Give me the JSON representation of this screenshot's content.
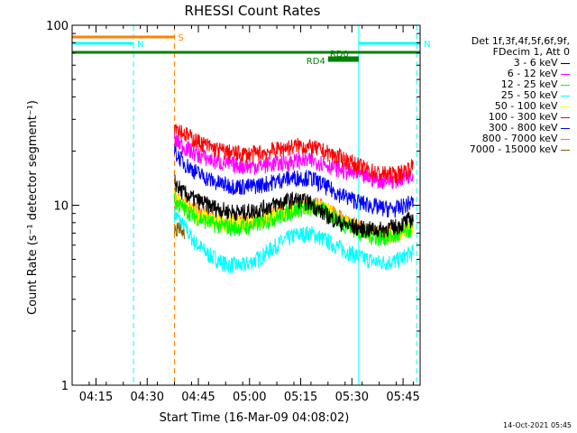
{
  "chart_data": {
    "type": "line",
    "title": "RHESSI Count Rates",
    "xlabel": "Start Time (16-Mar-09 04:08:02)",
    "ylabel": "Count Rate (s⁻¹ detector segment⁻¹)",
    "yscale": "log",
    "ylim": [
      1,
      100
    ],
    "xlim_minutes": [
      0,
      102
    ],
    "x_ticks": [
      "04:15",
      "04:30",
      "04:45",
      "05:00",
      "05:15",
      "05:30",
      "05:45"
    ],
    "y_ticks": [
      "1",
      "10",
      "100"
    ],
    "legend_header": [
      "Det 1f,3f,4f,5f,6f,9f,",
      "FDecim 1, Att 0"
    ],
    "series": [
      {
        "name": "3 - 6 keV",
        "color": "#000000",
        "points": [
          [
            30,
            13.5
          ],
          [
            32,
            12
          ],
          [
            35,
            11
          ],
          [
            40,
            10
          ],
          [
            45,
            9.3
          ],
          [
            50,
            9.1
          ],
          [
            55,
            9.5
          ],
          [
            60,
            10.2
          ],
          [
            65,
            10.8
          ],
          [
            70,
            10.3
          ],
          [
            72,
            9.5
          ],
          [
            76,
            8.5
          ],
          [
            80,
            7.8
          ],
          [
            85,
            7.4
          ],
          [
            90,
            7.3
          ],
          [
            95,
            7.6
          ],
          [
            100,
            8.5
          ]
        ]
      },
      {
        "name": "6 - 12 keV",
        "color": "#ff00ff",
        "points": [
          [
            30,
            23
          ],
          [
            33,
            21
          ],
          [
            37,
            19
          ],
          [
            42,
            17.5
          ],
          [
            47,
            16.8
          ],
          [
            52,
            16.5
          ],
          [
            57,
            16.8
          ],
          [
            62,
            17.2
          ],
          [
            67,
            17.8
          ],
          [
            72,
            17.5
          ],
          [
            76,
            16.5
          ],
          [
            80,
            15.5
          ],
          [
            85,
            14.5
          ],
          [
            90,
            13.8
          ],
          [
            95,
            13.8
          ],
          [
            100,
            15
          ]
        ]
      },
      {
        "name": "12 - 25 keV",
        "color": "#00ff00",
        "points": [
          [
            30,
            10.5
          ],
          [
            33,
            9.5
          ],
          [
            37,
            8.5
          ],
          [
            42,
            7.8
          ],
          [
            47,
            7.5
          ],
          [
            52,
            7.6
          ],
          [
            57,
            8.2
          ],
          [
            62,
            8.9
          ],
          [
            67,
            9.6
          ],
          [
            72,
            9.7
          ],
          [
            76,
            8.8
          ],
          [
            80,
            7.8
          ],
          [
            85,
            7.0
          ],
          [
            90,
            6.6
          ],
          [
            95,
            6.7
          ],
          [
            100,
            7.5
          ]
        ]
      },
      {
        "name": "25 - 50 keV",
        "color": "#00ffff",
        "points": [
          [
            30,
            9
          ],
          [
            33,
            7.5
          ],
          [
            36,
            6.2
          ],
          [
            40,
            5.3
          ],
          [
            45,
            4.7
          ],
          [
            50,
            4.6
          ],
          [
            55,
            5.1
          ],
          [
            60,
            6.0
          ],
          [
            65,
            6.8
          ],
          [
            70,
            7.0
          ],
          [
            75,
            6.3
          ],
          [
            80,
            5.6
          ],
          [
            85,
            5.1
          ],
          [
            90,
            4.8
          ],
          [
            95,
            4.9
          ],
          [
            100,
            5.5
          ]
        ]
      },
      {
        "name": "50 - 100 keV",
        "color": "#ffff00",
        "points": [
          [
            30,
            11
          ],
          [
            33,
            9.8
          ],
          [
            37,
            8.8
          ],
          [
            42,
            8.1
          ],
          [
            47,
            7.9
          ],
          [
            52,
            8.0
          ],
          [
            57,
            8.6
          ],
          [
            62,
            9.2
          ],
          [
            67,
            9.8
          ],
          [
            72,
            9.9
          ],
          [
            76,
            9.0
          ],
          [
            80,
            8.0
          ],
          [
            85,
            7.2
          ],
          [
            90,
            6.8
          ],
          [
            95,
            6.9
          ],
          [
            100,
            7.6
          ]
        ]
      },
      {
        "name": "100 - 300 keV",
        "color": "#ff0000",
        "points": [
          [
            30,
            28
          ],
          [
            33,
            25
          ],
          [
            37,
            22.5
          ],
          [
            42,
            20.5
          ],
          [
            47,
            19.5
          ],
          [
            52,
            19.2
          ],
          [
            57,
            19.8
          ],
          [
            62,
            20.8
          ],
          [
            67,
            21.5
          ],
          [
            72,
            20.5
          ],
          [
            76,
            19.2
          ],
          [
            80,
            18
          ],
          [
            85,
            16.2
          ],
          [
            90,
            15
          ],
          [
            95,
            14.8
          ],
          [
            100,
            16.5
          ]
        ]
      },
      {
        "name": "300 - 800 keV",
        "color": "#0000ff",
        "points": [
          [
            30,
            20
          ],
          [
            33,
            17
          ],
          [
            37,
            15
          ],
          [
            42,
            13.4
          ],
          [
            47,
            12.8
          ],
          [
            52,
            12.7
          ],
          [
            57,
            13.2
          ],
          [
            62,
            14
          ],
          [
            67,
            14.3
          ],
          [
            70,
            14.2
          ],
          [
            72,
            13.5
          ],
          [
            76,
            12.2
          ],
          [
            80,
            11.2
          ],
          [
            85,
            10.3
          ],
          [
            90,
            9.7
          ],
          [
            95,
            9.5
          ],
          [
            100,
            10.5
          ]
        ]
      },
      {
        "name": "800 - 7000 keV",
        "color": "#ff8000",
        "points": [
          [
            30,
            11.5
          ],
          [
            33,
            10.3
          ],
          [
            37,
            9.2
          ],
          [
            42,
            8.5
          ],
          [
            47,
            8.2
          ],
          [
            52,
            8.3
          ],
          [
            57,
            8.8
          ],
          [
            62,
            9.4
          ],
          [
            67,
            10
          ],
          [
            72,
            10.1
          ],
          [
            76,
            9.2
          ],
          [
            80,
            8.2
          ],
          [
            85,
            7.4
          ],
          [
            90,
            7.0
          ],
          [
            95,
            7.0
          ],
          [
            100,
            7.8
          ]
        ]
      },
      {
        "name": "7000 - 15000 keV",
        "color": "#806000",
        "points": [
          [
            30,
            7.5
          ],
          [
            33,
            7
          ]
        ]
      }
    ],
    "flag_bars": [
      {
        "label": "S",
        "color": "#ff8000",
        "x": [
          0,
          30
        ]
      },
      {
        "label": "N",
        "color": "#00ffff",
        "x": [
          0,
          18
        ]
      },
      {
        "label": "N",
        "color": "#00ffff",
        "x": [
          84,
          102
        ]
      },
      {
        "label": "",
        "color": "#008000",
        "x": [
          0,
          102
        ]
      },
      {
        "label": "RD0",
        "color": "#008000",
        "x": [
          75,
          84
        ]
      },
      {
        "label": "RD4",
        "color": "#008000",
        "x": [
          75,
          84
        ]
      }
    ],
    "vlines": [
      {
        "x": 18,
        "color": "#00ffff",
        "style": "dashed"
      },
      {
        "x": 30,
        "color": "#ff8000",
        "style": "dashed"
      },
      {
        "x": 84,
        "color": "#00ffff",
        "style": "solid"
      },
      {
        "x": 101,
        "color": "#00ffff",
        "style": "dashed"
      }
    ]
  },
  "timestamp": "14-Oct-2021 05:45"
}
